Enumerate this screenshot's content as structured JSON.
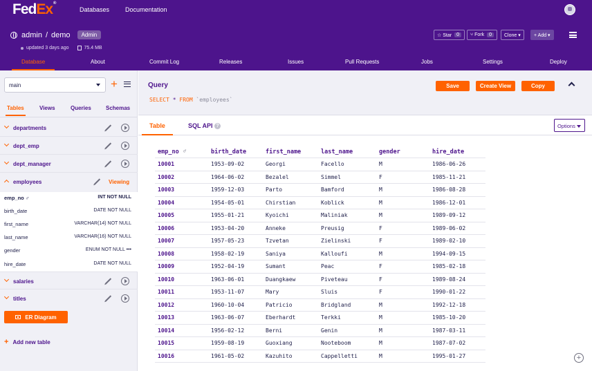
{
  "brand": {
    "fed": "Fed",
    "ex": "Ex",
    "mark": "®"
  },
  "topnav": {
    "databases": "Databases",
    "documentation": "Documentation"
  },
  "repo": {
    "owner": "admin",
    "sep": "/",
    "name": "demo",
    "badge": "Admin",
    "updated": "updated 3 days ago",
    "size": "75.4 MB"
  },
  "actions": {
    "star": "☆ Star",
    "star_count": "0",
    "fork": "⑂ Fork",
    "fork_count": "0",
    "clone": "Clone ▾",
    "add": "+ Add ▾"
  },
  "tabs": [
    "Database",
    "About",
    "Commit Log",
    "Releases",
    "Issues",
    "Pull Requests",
    "Jobs",
    "Settings",
    "Deploy"
  ],
  "sidebar": {
    "branch": "main",
    "tabs": [
      "Tables",
      "Views",
      "Queries",
      "Schemas"
    ],
    "tables": [
      "departments",
      "dept_emp",
      "dept_manager",
      "employees",
      "salaries",
      "titles"
    ],
    "viewing": "Viewing",
    "columns": [
      {
        "name": "emp_no ♂",
        "type": "INT NOT NULL"
      },
      {
        "name": "birth_date",
        "type": "DATE NOT NULL"
      },
      {
        "name": "first_name",
        "type": "VARCHAR(14) NOT NULL"
      },
      {
        "name": "last_name",
        "type": "VARCHAR(16) NOT NULL"
      },
      {
        "name": "gender",
        "type": "ENUM NOT NULL •••"
      },
      {
        "name": "hire_date",
        "type": "DATE NOT NULL"
      }
    ],
    "er_button": "ER Diagram",
    "add_table": "Add new table"
  },
  "query": {
    "title": "Query",
    "sql_select": "SELECT",
    "sql_star": "*",
    "sql_from": "FROM",
    "sql_table": "`employees`",
    "save": "Save",
    "create_view": "Create View",
    "copy": "Copy"
  },
  "result_tabs": {
    "table": "Table",
    "sql_api": "SQL API",
    "help": "?",
    "options": "Options"
  },
  "grid": {
    "headers": [
      "emp_no",
      "birth_date",
      "first_name",
      "last_name",
      "gender",
      "hire_date"
    ],
    "key_glyph": "♂",
    "rows": [
      [
        "10001",
        "1953-09-02",
        "Georgi",
        "Facello",
        "M",
        "1986-06-26"
      ],
      [
        "10002",
        "1964-06-02",
        "Bezalel",
        "Simmel",
        "F",
        "1985-11-21"
      ],
      [
        "10003",
        "1959-12-03",
        "Parto",
        "Bamford",
        "M",
        "1986-08-28"
      ],
      [
        "10004",
        "1954-05-01",
        "Chirstian",
        "Koblick",
        "M",
        "1986-12-01"
      ],
      [
        "10005",
        "1955-01-21",
        "Kyoichi",
        "Maliniak",
        "M",
        "1989-09-12"
      ],
      [
        "10006",
        "1953-04-20",
        "Anneke",
        "Preusig",
        "F",
        "1989-06-02"
      ],
      [
        "10007",
        "1957-05-23",
        "Tzvetan",
        "Zielinski",
        "F",
        "1989-02-10"
      ],
      [
        "10008",
        "1958-02-19",
        "Saniya",
        "Kalloufi",
        "M",
        "1994-09-15"
      ],
      [
        "10009",
        "1952-04-19",
        "Sumant",
        "Peac",
        "F",
        "1985-02-18"
      ],
      [
        "10010",
        "1963-06-01",
        "Duangkaew",
        "Piveteau",
        "F",
        "1989-08-24"
      ],
      [
        "10011",
        "1953-11-07",
        "Mary",
        "Sluis",
        "F",
        "1990-01-22"
      ],
      [
        "10012",
        "1960-10-04",
        "Patricio",
        "Bridgland",
        "M",
        "1992-12-18"
      ],
      [
        "10013",
        "1963-06-07",
        "Eberhardt",
        "Terkki",
        "M",
        "1985-10-20"
      ],
      [
        "10014",
        "1956-02-12",
        "Berni",
        "Genin",
        "M",
        "1987-03-11"
      ],
      [
        "10015",
        "1959-08-19",
        "Guoxiang",
        "Nooteboom",
        "M",
        "1987-07-02"
      ],
      [
        "10016",
        "1961-05-02",
        "Kazuhito",
        "Cappelletti",
        "M",
        "1995-01-27"
      ]
    ]
  },
  "colors": {
    "brand_purple": "#4d148c",
    "accent_orange": "#ff6200"
  }
}
